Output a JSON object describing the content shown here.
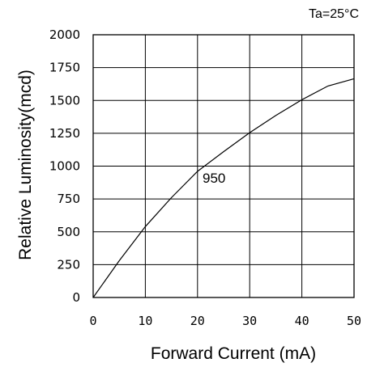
{
  "chart_data": {
    "type": "line",
    "condition": "Ta=25°C",
    "xlabel": "Forward Current (mA)",
    "ylabel": "Relative Luminosity(mcd)",
    "xlim": [
      0,
      50
    ],
    "ylim": [
      0,
      2000
    ],
    "x_ticks": [
      "0",
      "10",
      "20",
      "30",
      "40",
      "50"
    ],
    "y_ticks": [
      "0",
      "250",
      "500",
      "750",
      "1000",
      "1250",
      "1500",
      "1750",
      "2000"
    ],
    "grid": true,
    "annotation": "950",
    "series": [
      {
        "x": [
          0,
          5,
          10,
          15,
          20,
          25,
          30,
          35,
          40,
          45,
          50
        ],
        "y": [
          0,
          280,
          540,
          760,
          960,
          1110,
          1255,
          1385,
          1505,
          1610,
          1665
        ]
      }
    ]
  }
}
